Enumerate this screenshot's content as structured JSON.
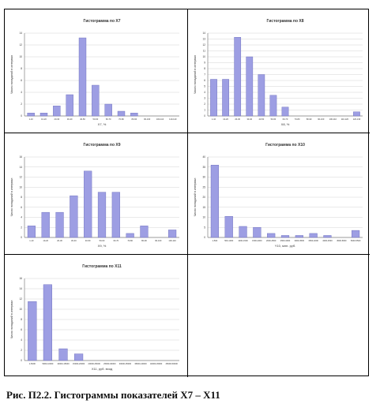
{
  "colors": {
    "bar": "#9d9ee3",
    "bar_stroke": "#6668b8",
    "grid": "#d4d4d4",
    "axis": "#808080",
    "text": "#333333"
  },
  "caption": "Рис. П2.2. Гистограммы показателей X7 – X11",
  "chart_data": [
    {
      "type": "bar",
      "title": "Гистограмма по X7",
      "xlabel": "X7, %",
      "ylabel": "Число попаданий в интервал",
      "ylim": [
        0,
        14
      ],
      "yticks": [
        0,
        2,
        4,
        6,
        8,
        10,
        12,
        14
      ],
      "grid": true,
      "categories": [
        "1-10",
        "10-20",
        "20-30",
        "30-40",
        "40-50",
        "50-60",
        "60-70",
        "70-80",
        "80-90",
        "90-100",
        "100-110",
        "110-120"
      ],
      "values": [
        0.5,
        0.5,
        1.7,
        3.6,
        13.2,
        5.2,
        2.0,
        0.8,
        0.5,
        0,
        0,
        0
      ]
    },
    {
      "type": "bar",
      "title": "Гистограмма по X8",
      "xlabel": "X8, %",
      "ylabel": "Число попаданий в интервал",
      "ylim": [
        0,
        14
      ],
      "yticks": [
        0,
        1,
        2,
        3,
        4,
        5,
        6,
        7,
        8,
        9,
        10,
        11,
        12,
        13,
        14
      ],
      "grid": true,
      "categories": [
        "1-10",
        "10-20",
        "20-30",
        "30-40",
        "40-50",
        "50-60",
        "60-70",
        "70-80",
        "80-90",
        "90-100",
        "100-110",
        "110-120",
        "120-130"
      ],
      "values": [
        6.2,
        6.2,
        13.3,
        10.0,
        7.0,
        3.5,
        1.5,
        0,
        0,
        0,
        0,
        0,
        0.7
      ]
    },
    {
      "type": "bar",
      "title": "Гистограмма по X9",
      "xlabel": "X9, %",
      "ylabel": "Число попаданий в интервал",
      "ylim": [
        0,
        16
      ],
      "yticks": [
        0,
        2,
        4,
        6,
        8,
        10,
        12,
        14,
        16
      ],
      "grid": true,
      "categories": [
        "1-10",
        "10-20",
        "20-30",
        "30-40",
        "40-50",
        "50-60",
        "60-70",
        "70-80",
        "80-90",
        "90-100",
        "100-110"
      ],
      "values": [
        2.3,
        5.0,
        5.0,
        8.3,
        13.2,
        9.0,
        9.0,
        0.8,
        2.3,
        0,
        1.5
      ]
    },
    {
      "type": "bar",
      "title": "Гистограмма по X10",
      "xlabel": "Y10, млн. руб.",
      "ylabel": "Число попаданий в интервал",
      "ylim": [
        0,
        40
      ],
      "yticks": [
        0,
        5,
        10,
        15,
        20,
        25,
        30,
        35,
        40
      ],
      "grid": true,
      "categories": [
        "1-500",
        "500-1000",
        "1000-1500",
        "1500-2000",
        "2000-2500",
        "2500-3000",
        "3000-3500",
        "3500-4000",
        "4000-4500",
        "4500-5000",
        "5000-5500"
      ],
      "values": [
        36.0,
        10.5,
        5.5,
        5.0,
        2.0,
        1.0,
        1.0,
        2.0,
        1.0,
        0,
        3.5
      ]
    },
    {
      "type": "bar",
      "title": "Гистограмма по X11",
      "xlabel": "X11, руб. вход",
      "ylabel": "Число попаданий в интервал",
      "ylim": [
        0,
        16
      ],
      "yticks": [
        0,
        2,
        4,
        6,
        8,
        10,
        12,
        14,
        16
      ],
      "grid": true,
      "categories": [
        "1-5000",
        "5000-10000",
        "10000-15000",
        "15000-20000",
        "20000-25000",
        "25000-30000",
        "30000-35000",
        "35000-40000",
        "40000-45000",
        "45000-50000"
      ],
      "values": [
        11.5,
        14.8,
        2.3,
        1.3,
        0,
        0,
        0,
        0,
        0,
        0
      ]
    }
  ]
}
